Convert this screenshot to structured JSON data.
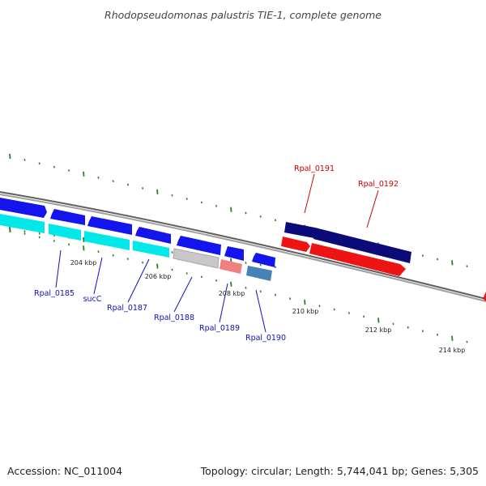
{
  "title": "Rhodopseudomonas palustris TIE-1, complete genome",
  "footer": {
    "accession": "Accession: NC_011004",
    "summary": "Topology: circular; Length: 5,744,041 bp; Genes: 5,305"
  },
  "colors": {
    "backbone": "#808080",
    "tick": "#2e7d2e",
    "forward_gene": "#1414ee",
    "reverse_gene": "#ee1414",
    "forward_cds": "#00e8e8",
    "hypothetical": "#c0c0c0",
    "pink": "#f08080",
    "steel": "#4682b4",
    "navy": "#0a0a78",
    "label_blue": "#1010bb",
    "label_red": "#cc0000"
  },
  "scale_labels": [
    "204 kbp",
    "206 kbp",
    "208 kbp",
    "210 kbp",
    "212 kbp",
    "214 kbp"
  ],
  "gene_labels_bottom": [
    "Rpal_0185",
    "sucC",
    "Rpal_0187",
    "Rpal_0188",
    "Rpal_0189",
    "Rpal_0190"
  ],
  "gene_labels_top": [
    "Rpal_0191",
    "Rpal_0192"
  ]
}
